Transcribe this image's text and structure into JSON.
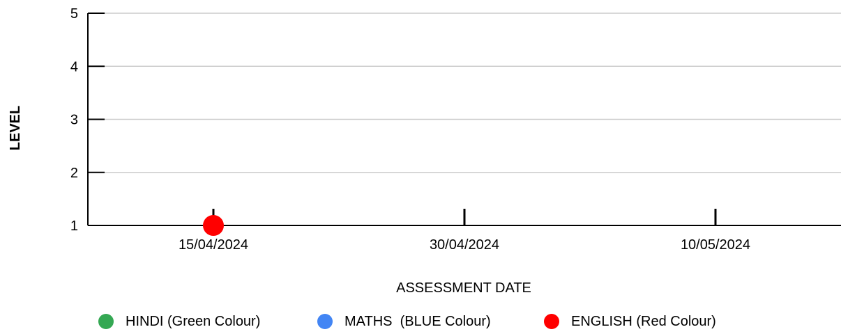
{
  "chart_data": {
    "type": "scatter",
    "xlabel": "ASSESSMENT DATE",
    "ylabel": "LEVEL",
    "categories": [
      "15/04/2024",
      "30/04/2024",
      "10/05/2024"
    ],
    "ylim": [
      1,
      5
    ],
    "yticks": [
      1,
      2,
      3,
      4,
      5
    ],
    "grid": true,
    "legend_position": "bottom",
    "series": [
      {
        "name": "HINDI (Green Colour)",
        "color": "#34a853",
        "values": [
          null,
          null,
          null
        ]
      },
      {
        "name": "MATHS  (BLUE Colour)",
        "color": "#4285f4",
        "values": [
          null,
          null,
          null
        ]
      },
      {
        "name": "ENGLISH (Red Colour)",
        "color": "#ff0000",
        "values": [
          1,
          null,
          null
        ]
      }
    ]
  }
}
